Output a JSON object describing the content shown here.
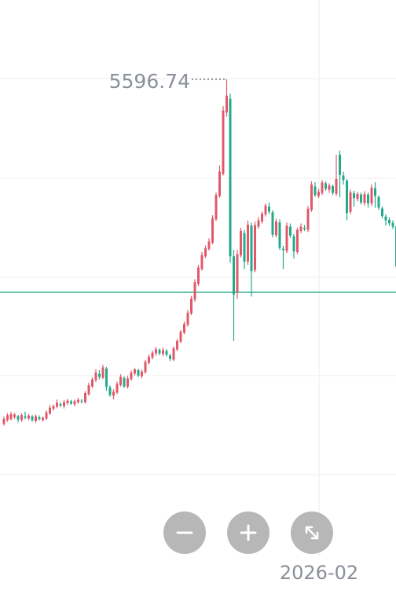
{
  "colors": {
    "up": "#e0596b",
    "down": "#23a98b",
    "ref_line": "#3aae92",
    "grid": "#eeeeee",
    "text": "#8a8f98",
    "button": "#b7b7b7"
  },
  "controls": {
    "zoom_out_icon": "minus-icon",
    "zoom_in_icon": "plus-icon",
    "fullscreen_icon": "expand-icon"
  },
  "chart_data": {
    "type": "candlestick",
    "max_label": "5596.74",
    "x_tick_label": "2026-02",
    "ylim": [
      3900,
      5660
    ],
    "ref_price": 4590,
    "grid": true,
    "candles": [
      [
        3968,
        3992,
        4002,
        3960
      ],
      [
        3986,
        4009,
        4018,
        3978
      ],
      [
        3991,
        4014,
        4025,
        3984
      ],
      [
        4000,
        4012,
        4020,
        3992
      ],
      [
        4005,
        3988,
        4010,
        3975
      ],
      [
        3986,
        4010,
        4018,
        3978
      ],
      [
        4003,
        3997,
        4026,
        3989
      ],
      [
        3994,
        4007,
        4015,
        3985
      ],
      [
        4003,
        3985,
        4010,
        3978
      ],
      [
        3981,
        4004,
        4012,
        3972
      ],
      [
        3999,
        3991,
        4008,
        3984
      ],
      [
        3986,
        3996,
        4004,
        3979
      ],
      [
        3993,
        4022,
        4032,
        3986
      ],
      [
        4017,
        4045,
        4057,
        4010
      ],
      [
        4039,
        4051,
        4060,
        4031
      ],
      [
        4049,
        4068,
        4083,
        4042
      ],
      [
        4062,
        4055,
        4070,
        4047
      ],
      [
        4051,
        4070,
        4081,
        4041
      ],
      [
        4066,
        4078,
        4085,
        4057
      ],
      [
        4074,
        4064,
        4082,
        4057
      ],
      [
        4061,
        4075,
        4083,
        4050
      ],
      [
        4070,
        4082,
        4091,
        4063
      ],
      [
        4077,
        4073,
        4085,
        4065
      ],
      [
        4070,
        4114,
        4122,
        4064
      ],
      [
        4108,
        4151,
        4162,
        4101
      ],
      [
        4145,
        4178,
        4188,
        4137
      ],
      [
        4175,
        4210,
        4226,
        4166
      ],
      [
        4205,
        4190,
        4222,
        4178
      ],
      [
        4186,
        4235,
        4247,
        4179
      ],
      [
        4229,
        4143,
        4237,
        4124
      ],
      [
        4140,
        4104,
        4150,
        4096
      ],
      [
        4101,
        4120,
        4132,
        4084
      ],
      [
        4116,
        4157,
        4168,
        4108
      ],
      [
        4152,
        4190,
        4203,
        4144
      ],
      [
        4186,
        4145,
        4192,
        4138
      ],
      [
        4143,
        4183,
        4195,
        4135
      ],
      [
        4179,
        4210,
        4221,
        4172
      ],
      [
        4206,
        4225,
        4233,
        4197
      ],
      [
        4222,
        4196,
        4228,
        4189
      ],
      [
        4193,
        4215,
        4224,
        4184
      ],
      [
        4212,
        4261,
        4271,
        4205
      ],
      [
        4256,
        4285,
        4296,
        4249
      ],
      [
        4281,
        4305,
        4314,
        4273
      ],
      [
        4301,
        4321,
        4332,
        4290
      ],
      [
        4318,
        4301,
        4325,
        4292
      ],
      [
        4298,
        4317,
        4329,
        4288
      ],
      [
        4312,
        4295,
        4322,
        4287
      ],
      [
        4291,
        4275,
        4299,
        4265
      ],
      [
        4272,
        4325,
        4334,
        4264
      ],
      [
        4320,
        4360,
        4370,
        4312
      ],
      [
        4357,
        4403,
        4412,
        4349
      ],
      [
        4399,
        4440,
        4452,
        4391
      ],
      [
        4436,
        4494,
        4506,
        4428
      ],
      [
        4490,
        4560,
        4573,
        4482
      ],
      [
        4556,
        4637,
        4652,
        4545
      ],
      [
        4630,
        4707,
        4720,
        4620
      ],
      [
        4700,
        4766,
        4780,
        4692
      ],
      [
        4760,
        4798,
        4811,
        4752
      ],
      [
        4795,
        4830,
        4845,
        4787
      ],
      [
        4825,
        4940,
        4954,
        4817
      ],
      [
        4935,
        5050,
        5062,
        4927
      ],
      [
        5045,
        5160,
        5190,
        5037
      ],
      [
        5150,
        5450,
        5470,
        5142
      ],
      [
        5440,
        5520,
        5597,
        5420
      ],
      [
        5505,
        4760,
        5530,
        4730
      ],
      [
        4760,
        4580,
        4790,
        4360
      ],
      [
        4590,
        4770,
        4790,
        4560
      ],
      [
        4765,
        4880,
        4895,
        4755
      ],
      [
        4870,
        4735,
        4885,
        4700
      ],
      [
        4735,
        4910,
        4930,
        4720
      ],
      [
        4905,
        4690,
        4920,
        4570
      ],
      [
        4695,
        4908,
        4925,
        4685
      ],
      [
        4900,
        4930,
        4945,
        4890
      ],
      [
        4925,
        4962,
        4972,
        4915
      ],
      [
        4958,
        5000,
        5010,
        4948
      ],
      [
        4995,
        4972,
        5015,
        4960
      ],
      [
        4968,
        4862,
        4978,
        4850
      ],
      [
        4860,
        4925,
        4938,
        4850
      ],
      [
        4920,
        4800,
        4935,
        4790
      ],
      [
        4795,
        4790,
        4810,
        4700
      ],
      [
        4785,
        4905,
        4920,
        4775
      ],
      [
        4900,
        4858,
        4915,
        4848
      ],
      [
        4855,
        4783,
        4866,
        4750
      ],
      [
        4780,
        4885,
        4895,
        4770
      ],
      [
        4880,
        4900,
        4915,
        4870
      ],
      [
        4895,
        4890,
        4908,
        4880
      ],
      [
        4885,
        4985,
        4998,
        4875
      ],
      [
        4980,
        5100,
        5115,
        4970
      ],
      [
        5090,
        5050,
        5110,
        5040
      ],
      [
        5045,
        5065,
        5080,
        5035
      ],
      [
        5060,
        5110,
        5120,
        5050
      ],
      [
        5105,
        5080,
        5115,
        5070
      ],
      [
        5075,
        5095,
        5105,
        5060
      ],
      [
        5092,
        5060,
        5098,
        5050
      ],
      [
        5055,
        5125,
        5240,
        5045
      ],
      [
        5240,
        5145,
        5260,
        5040
      ],
      [
        5142,
        5120,
        5160,
        5100
      ],
      [
        5118,
        4965,
        5125,
        4930
      ],
      [
        4970,
        5062,
        5075,
        4960
      ],
      [
        5058,
        5035,
        5070,
        4995
      ],
      [
        5032,
        5055,
        5065,
        5020
      ],
      [
        5052,
        5015,
        5062,
        5005
      ],
      [
        5012,
        5055,
        5068,
        5000
      ],
      [
        5052,
        5010,
        5062,
        4990
      ],
      [
        5010,
        5085,
        5100,
        4998
      ],
      [
        5082,
        5045,
        5110,
        4990
      ],
      [
        5040,
        4990,
        5048,
        4980
      ],
      [
        4986,
        4950,
        4996,
        4940
      ],
      [
        4948,
        4930,
        4958,
        4905
      ],
      [
        4932,
        4916,
        4945,
        4905
      ],
      [
        4918,
        4900,
        4930,
        4890
      ],
      [
        4902,
        4712,
        4910,
        4700
      ],
      [
        4710,
        4572,
        4720,
        4560
      ],
      [
        4574,
        4512,
        4582,
        4500
      ]
    ]
  }
}
